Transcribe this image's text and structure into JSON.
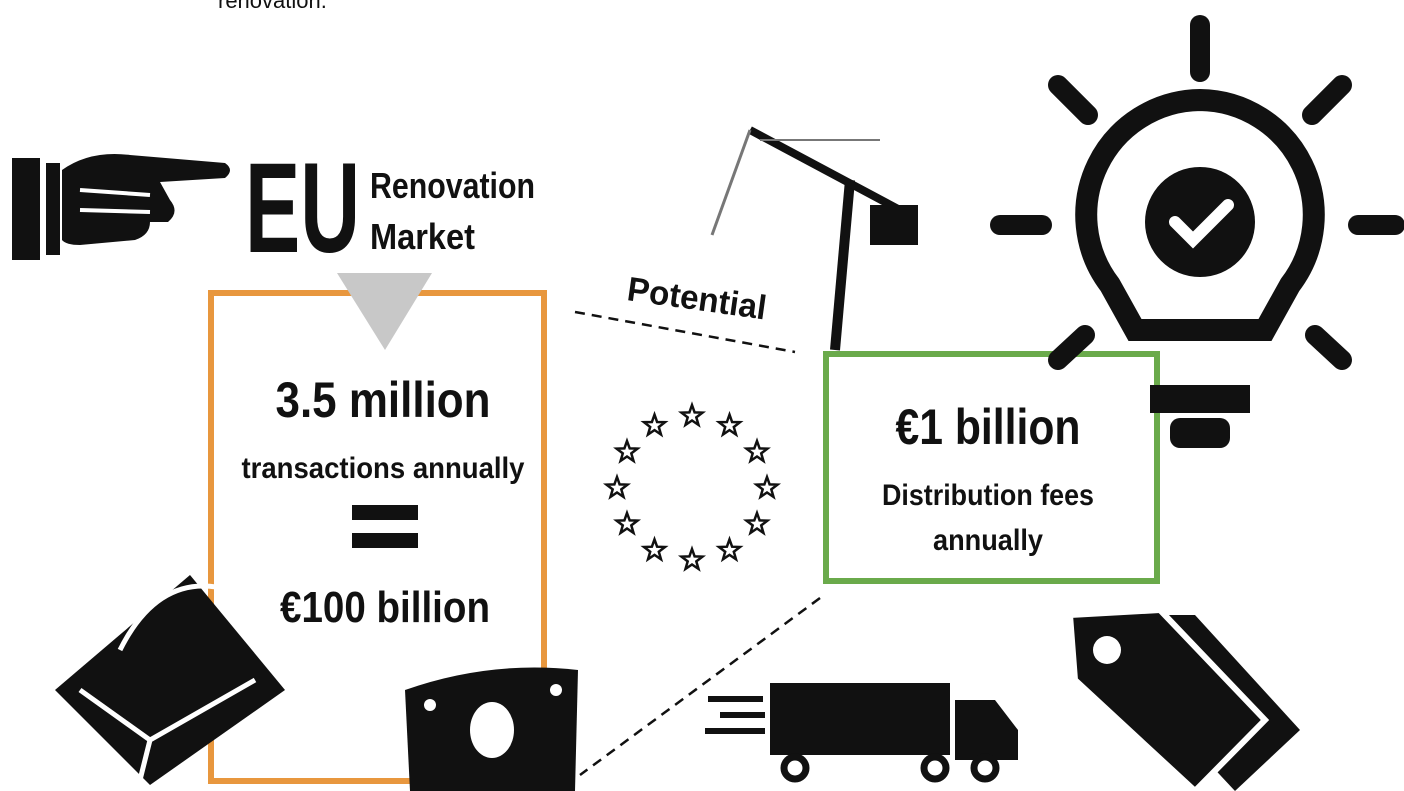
{
  "header": {
    "caption": "renovation."
  },
  "left": {
    "big": "EU",
    "line1": "Renovation",
    "line2": "Market"
  },
  "market_box": {
    "amount": "3.5 million",
    "unit": "transactions annually",
    "value": "€100 billion"
  },
  "connector": {
    "label": "Potential"
  },
  "fees_box": {
    "amount": "€1 billion",
    "line1": "Distribution fees",
    "line2": "annually"
  }
}
